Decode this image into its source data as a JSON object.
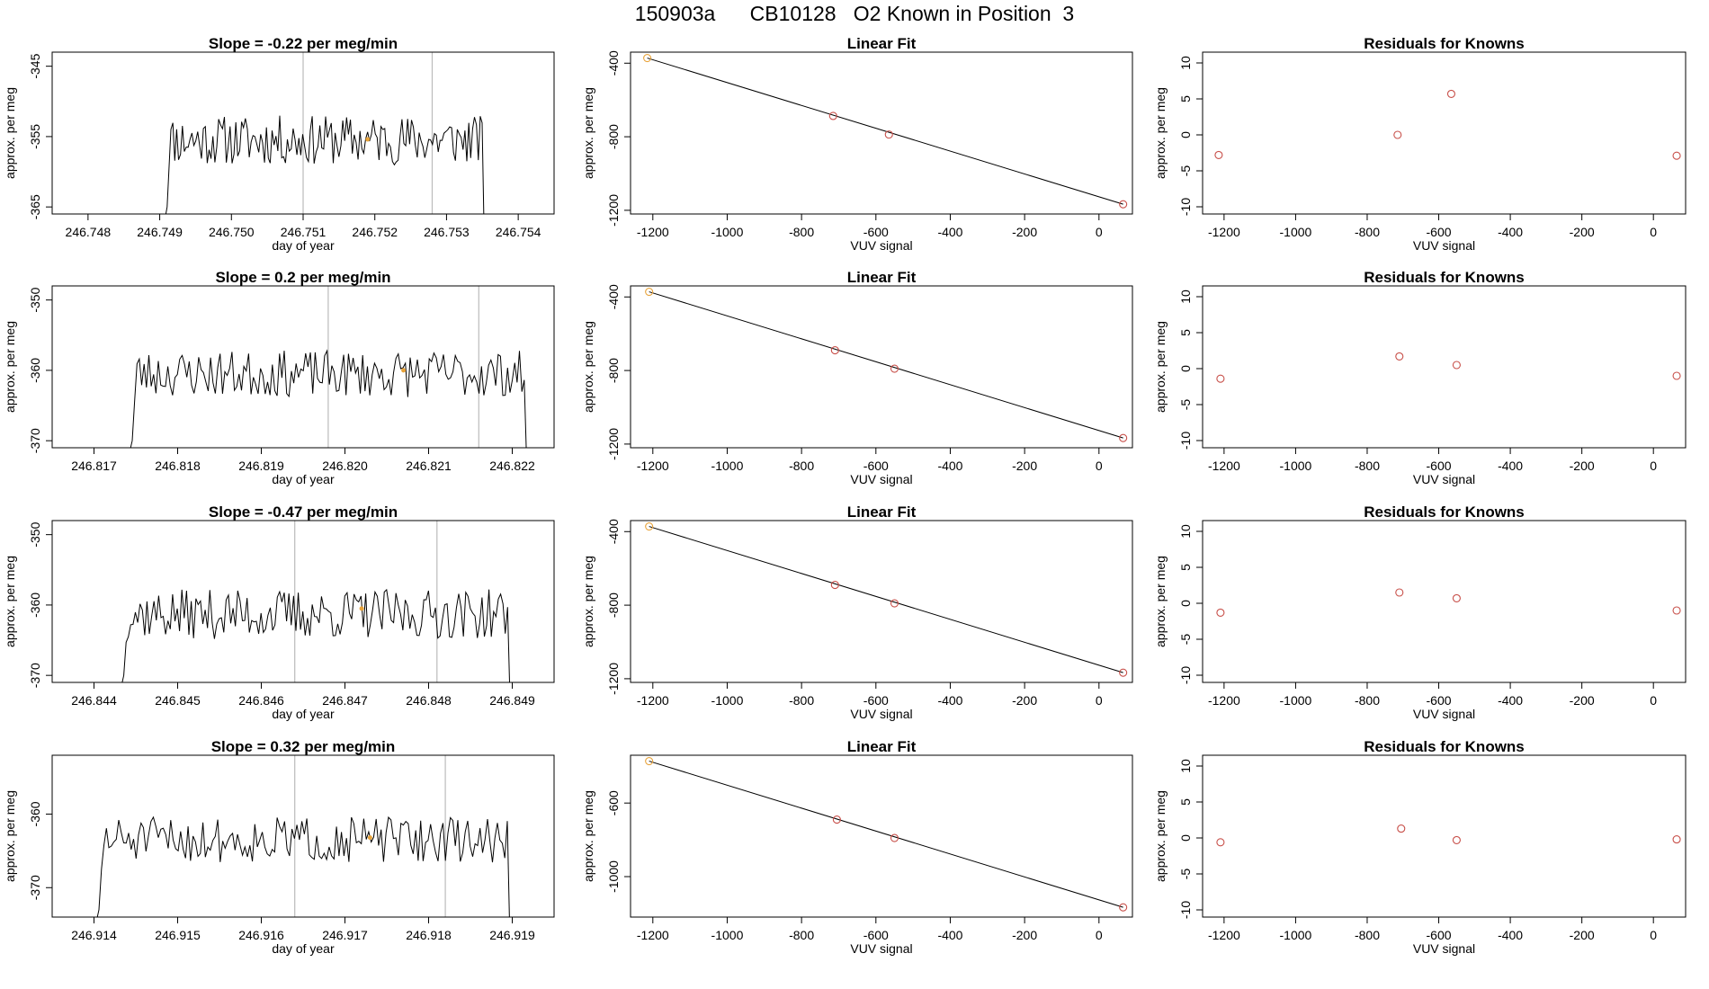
{
  "page": {
    "title": "150903a      CB10128   O2 Known in Position  3"
  },
  "colors": {
    "line": "#000000",
    "known_point": "#c8504a",
    "highlight_point": "#e8a33a",
    "vline": "#bbbbbb"
  },
  "chart_data": [
    {
      "id": "p-1-1",
      "type": "line",
      "title": "Slope =  -0.22  per meg/min",
      "xlabel": "day of year",
      "ylabel": "approx. per meg",
      "xlim": [
        246.7475,
        246.7545
      ],
      "ylim": [
        -366,
        -343
      ],
      "xticks": [
        246.748,
        246.749,
        246.75,
        246.751,
        246.752,
        246.753,
        246.754
      ],
      "xtick_labels": [
        "246.748",
        "246.749",
        "246.750",
        "246.751",
        "246.752",
        "246.753",
        "246.754"
      ],
      "yticks": [
        -345,
        -355,
        -365
      ],
      "ytick_labels": [
        "-345",
        "-355",
        "-365"
      ],
      "vlines": [
        246.751,
        246.7528
      ],
      "marker": {
        "x": 246.7519,
        "y": -355.4
      },
      "series": {
        "x_start": 246.74905,
        "x_end": 246.75355,
        "n": 170,
        "mean": -355.5,
        "seed": 11,
        "amp": 1.6
      }
    },
    {
      "id": "p-1-2",
      "type": "scatter",
      "title": "Linear Fit",
      "xlabel": "VUV signal",
      "ylabel": "approx. per meg",
      "xlim": [
        -1260,
        90
      ],
      "ylim": [
        -1220,
        -340
      ],
      "xticks": [
        -1200,
        -1000,
        -800,
        -600,
        -400,
        -200,
        0
      ],
      "xtick_labels": [
        "-1200",
        "-1000",
        "-800",
        "-600",
        "-400",
        "-200",
        "0"
      ],
      "yticks": [
        -400,
        -800,
        -1200
      ],
      "ytick_labels": [
        "-400",
        "-800",
        "-1200"
      ],
      "fit": [
        [
          -1215,
          -372
        ],
        [
          65,
          -1167
        ]
      ],
      "points": [
        {
          "x": -1215,
          "y": -372,
          "hl": true
        },
        {
          "x": -715,
          "y": -687
        },
        {
          "x": -565,
          "y": -788
        },
        {
          "x": 65,
          "y": -1167
        }
      ]
    },
    {
      "id": "p-1-3",
      "type": "scatter",
      "title": "Residuals for Knowns",
      "xlabel": "VUV signal",
      "ylabel": "approx. per meg",
      "xlim": [
        -1260,
        90
      ],
      "ylim": [
        -11,
        11.5
      ],
      "xticks": [
        -1200,
        -1000,
        -800,
        -600,
        -400,
        -200,
        0
      ],
      "xtick_labels": [
        "-1200",
        "-1000",
        "-800",
        "-600",
        "-400",
        "-200",
        "0"
      ],
      "yticks": [
        10,
        5,
        0,
        -5,
        -10
      ],
      "ytick_labels": [
        "10",
        "5",
        "0",
        "-5",
        "-10"
      ],
      "points": [
        {
          "x": -1215,
          "y": -2.8
        },
        {
          "x": -715,
          "y": 0.0
        },
        {
          "x": -565,
          "y": 5.7
        },
        {
          "x": 65,
          "y": -2.9
        }
      ]
    },
    {
      "id": "p-2-1",
      "type": "line",
      "title": "Slope =  0.2  per meg/min",
      "xlabel": "day of year",
      "ylabel": "approx. per meg",
      "xlim": [
        246.8165,
        246.8225
      ],
      "ylim": [
        -371,
        -348
      ],
      "xticks": [
        246.817,
        246.818,
        246.819,
        246.82,
        246.821,
        246.822
      ],
      "xtick_labels": [
        "246.817",
        "246.818",
        "246.819",
        "246.820",
        "246.821",
        "246.822"
      ],
      "yticks": [
        -350,
        -360,
        -370
      ],
      "ytick_labels": [
        "-350",
        "-360",
        "-370"
      ],
      "vlines": [
        246.8198,
        246.8216
      ],
      "marker": {
        "x": 246.8207,
        "y": -360
      },
      "series": {
        "x_start": 246.8174,
        "x_end": 246.8222,
        "n": 170,
        "mean": -360.5,
        "seed": 23,
        "amp": 1.5
      }
    },
    {
      "id": "p-2-2",
      "type": "scatter",
      "title": "Linear Fit",
      "xlabel": "VUV signal",
      "ylabel": "approx. per meg",
      "xlim": [
        -1260,
        90
      ],
      "ylim": [
        -1220,
        -340
      ],
      "xticks": [
        -1200,
        -1000,
        -800,
        -600,
        -400,
        -200,
        0
      ],
      "xtick_labels": [
        "-1200",
        "-1000",
        "-800",
        "-600",
        "-400",
        "-200",
        "0"
      ],
      "yticks": [
        -400,
        -800,
        -1200
      ],
      "ytick_labels": [
        "-400",
        "-800",
        "-1200"
      ],
      "fit": [
        [
          -1210,
          -372
        ],
        [
          65,
          -1167
        ]
      ],
      "points": [
        {
          "x": -1210,
          "y": -372,
          "hl": true
        },
        {
          "x": -710,
          "y": -690
        },
        {
          "x": -550,
          "y": -790
        },
        {
          "x": 65,
          "y": -1167
        }
      ]
    },
    {
      "id": "p-2-3",
      "type": "scatter",
      "title": "Residuals for Knowns",
      "xlabel": "VUV signal",
      "ylabel": "approx. per meg",
      "xlim": [
        -1260,
        90
      ],
      "ylim": [
        -11,
        11.5
      ],
      "xticks": [
        -1200,
        -1000,
        -800,
        -600,
        -400,
        -200,
        0
      ],
      "xtick_labels": [
        "-1200",
        "-1000",
        "-800",
        "-600",
        "-400",
        "-200",
        "0"
      ],
      "yticks": [
        10,
        5,
        0,
        -5,
        -10
      ],
      "ytick_labels": [
        "10",
        "5",
        "0",
        "-5",
        "-10"
      ],
      "points": [
        {
          "x": -1210,
          "y": -1.4
        },
        {
          "x": -710,
          "y": 1.7
        },
        {
          "x": -550,
          "y": 0.5
        },
        {
          "x": 65,
          "y": -1.0
        }
      ]
    },
    {
      "id": "p-3-1",
      "type": "line",
      "title": "Slope =  -0.47  per meg/min",
      "xlabel": "day of year",
      "ylabel": "approx. per meg",
      "xlim": [
        246.8435,
        246.8495
      ],
      "ylim": [
        -371,
        -348
      ],
      "xticks": [
        246.844,
        246.845,
        246.846,
        246.847,
        246.848,
        246.849
      ],
      "xtick_labels": [
        "246.844",
        "246.845",
        "246.846",
        "246.847",
        "246.848",
        "246.849"
      ],
      "yticks": [
        -350,
        -360,
        -370
      ],
      "ytick_labels": [
        "-350",
        "-360",
        "-370"
      ],
      "vlines": [
        246.8464,
        246.8481
      ],
      "marker": {
        "x": 246.8472,
        "y": -360.5
      },
      "series": {
        "x_start": 246.8443,
        "x_end": 246.849,
        "n": 170,
        "mean": -361.3,
        "seed": 37,
        "amp": 1.6
      }
    },
    {
      "id": "p-3-2",
      "type": "scatter",
      "title": "Linear Fit",
      "xlabel": "VUV signal",
      "ylabel": "approx. per meg",
      "xlim": [
        -1260,
        90
      ],
      "ylim": [
        -1220,
        -340
      ],
      "xticks": [
        -1200,
        -1000,
        -800,
        -600,
        -400,
        -200,
        0
      ],
      "xtick_labels": [
        "-1200",
        "-1000",
        "-800",
        "-600",
        "-400",
        "-200",
        "0"
      ],
      "yticks": [
        -400,
        -800,
        -1200
      ],
      "ytick_labels": [
        "-400",
        "-800",
        "-1200"
      ],
      "fit": [
        [
          -1210,
          -372
        ],
        [
          65,
          -1167
        ]
      ],
      "points": [
        {
          "x": -1210,
          "y": -372,
          "hl": true
        },
        {
          "x": -710,
          "y": -690
        },
        {
          "x": -550,
          "y": -790
        },
        {
          "x": 65,
          "y": -1167
        }
      ]
    },
    {
      "id": "p-3-3",
      "type": "scatter",
      "title": "Residuals for Knowns",
      "xlabel": "VUV signal",
      "ylabel": "approx. per meg",
      "xlim": [
        -1260,
        90
      ],
      "ylim": [
        -11,
        11.5
      ],
      "xticks": [
        -1200,
        -1000,
        -800,
        -600,
        -400,
        -200,
        0
      ],
      "xtick_labels": [
        "-1200",
        "-1000",
        "-800",
        "-600",
        "-400",
        "-200",
        "0"
      ],
      "yticks": [
        10,
        5,
        0,
        -5,
        -10
      ],
      "ytick_labels": [
        "10",
        "5",
        "0",
        "-5",
        "-10"
      ],
      "points": [
        {
          "x": -1210,
          "y": -1.3
        },
        {
          "x": -710,
          "y": 1.5
        },
        {
          "x": -550,
          "y": 0.7
        },
        {
          "x": 65,
          "y": -1.0
        }
      ]
    },
    {
      "id": "p-4-1",
      "type": "line",
      "title": "Slope =  0.32  per meg/min",
      "xlabel": "day of year",
      "ylabel": "approx. per meg",
      "xlim": [
        246.9135,
        246.9195
      ],
      "ylim": [
        -374,
        -352
      ],
      "xticks": [
        246.914,
        246.915,
        246.916,
        246.917,
        246.918,
        246.919
      ],
      "xtick_labels": [
        "246.914",
        "246.915",
        "246.916",
        "246.917",
        "246.918",
        "246.919"
      ],
      "yticks": [
        -360,
        -370
      ],
      "ytick_labels": [
        "-360",
        "-370"
      ],
      "vlines": [
        246.9164,
        246.9182
      ],
      "marker": {
        "x": 246.9173,
        "y": -363.2
      },
      "series": {
        "x_start": 246.914,
        "x_end": 246.919,
        "n": 170,
        "mean": -363.5,
        "seed": 51,
        "amp": 1.4
      }
    },
    {
      "id": "p-4-2",
      "type": "scatter",
      "title": "Linear Fit",
      "xlabel": "VUV signal",
      "ylabel": "approx. per meg",
      "xlim": [
        -1260,
        90
      ],
      "ylim": [
        -1220,
        -340
      ],
      "xticks": [
        -1200,
        -1000,
        -800,
        -600,
        -400,
        -200,
        0
      ],
      "xtick_labels": [
        "-1200",
        "-1000",
        "-800",
        "-600",
        "-400",
        "-200",
        "0"
      ],
      "yticks": [
        -600,
        -1000
      ],
      "ytick_labels": [
        "-600",
        "-1000"
      ],
      "fit": [
        [
          -1210,
          -372
        ],
        [
          65,
          -1167
        ]
      ],
      "points": [
        {
          "x": -1210,
          "y": -372,
          "hl": true
        },
        {
          "x": -705,
          "y": -690
        },
        {
          "x": -550,
          "y": -790
        },
        {
          "x": 65,
          "y": -1167
        }
      ]
    },
    {
      "id": "p-4-3",
      "type": "scatter",
      "title": "Residuals for Knowns",
      "xlabel": "VUV signal",
      "ylabel": "approx. per meg",
      "xlim": [
        -1260,
        90
      ],
      "ylim": [
        -11,
        11.5
      ],
      "xticks": [
        -1200,
        -1000,
        -800,
        -600,
        -400,
        -200,
        0
      ],
      "xtick_labels": [
        "-1200",
        "-1000",
        "-800",
        "-600",
        "-400",
        "-200",
        "0"
      ],
      "yticks": [
        10,
        5,
        0,
        -5,
        -10
      ],
      "ytick_labels": [
        "10",
        "5",
        "0",
        "-5",
        "-10"
      ],
      "points": [
        {
          "x": -1210,
          "y": -0.6
        },
        {
          "x": -705,
          "y": 1.3
        },
        {
          "x": -550,
          "y": -0.3
        },
        {
          "x": 65,
          "y": -0.2
        }
      ]
    }
  ]
}
